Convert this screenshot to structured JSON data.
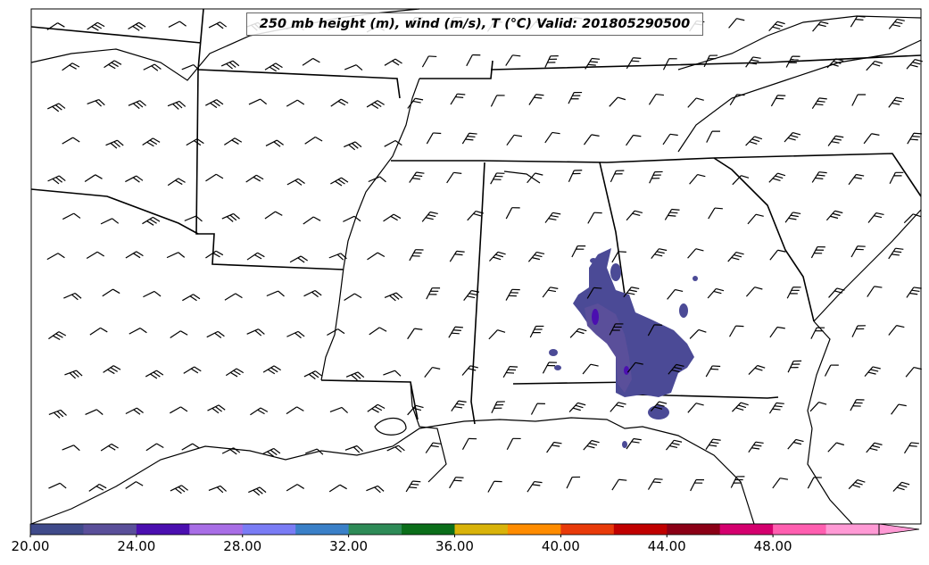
{
  "title": "250 mb height (m), wind (m/s), T (℃) Valid: 201805290500",
  "colorbar": {
    "min": 20,
    "max": 52,
    "step": 2,
    "colors": [
      "#3f4a8a",
      "#5a4f9a",
      "#4b0fb0",
      "#a86ee6",
      "#7a7cf5",
      "#3a80c8",
      "#2e8b57",
      "#0b6e1a",
      "#d9b30a",
      "#ff8c00",
      "#e83a0a",
      "#c00000",
      "#8b0016",
      "#d4006e",
      "#ff5fb0",
      "#ff9ad5"
    ],
    "tick_labels": [
      "20.00",
      "24.00",
      "28.00",
      "32.00",
      "36.00",
      "40.00",
      "44.00",
      "48.00"
    ],
    "extend": "max"
  },
  "field_colors": {
    "outer": "#4b4a96",
    "inner": "#5a4f9a",
    "core": "#4b0fb0"
  },
  "wind_barb_icon": "wind-barb-icon"
}
